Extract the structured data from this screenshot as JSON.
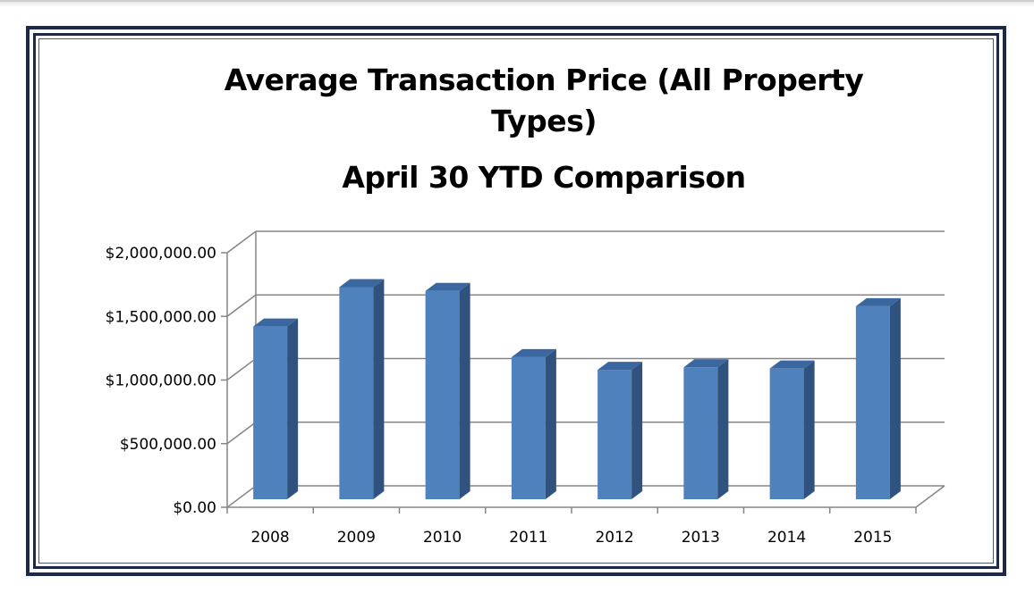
{
  "chart_data": {
    "type": "bar",
    "title_lines": [
      "Average Transaction Price (All Property",
      "Types)",
      "April 30 YTD Comparison"
    ],
    "categories": [
      "2008",
      "2009",
      "2010",
      "2011",
      "2012",
      "2013",
      "2014",
      "2015"
    ],
    "values": [
      1420000,
      1730000,
      1700000,
      1180000,
      1080000,
      1100000,
      1090000,
      1580000
    ],
    "ytick_labels": [
      "$0.00",
      "$500,000.00",
      "$1,000,000.00",
      "$1,500,000.00",
      "$2,000,000.00"
    ],
    "ylim": [
      0,
      2000000
    ],
    "grid": true,
    "legend": "none",
    "style": "3d-column",
    "colors": {
      "front": "#4f81bd",
      "side": "#30527e",
      "top": "#3b67a0",
      "grid": "#868686"
    }
  }
}
